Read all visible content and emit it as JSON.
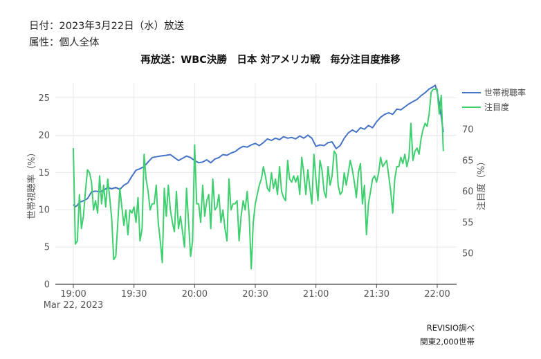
{
  "header": {
    "date_line": "日付：2023年3月22日（水）放送",
    "attribute_line": "属性：個人全体"
  },
  "footer": {
    "source": "REVISIO調べ",
    "sample": "関東2,000世帯"
  },
  "colors": {
    "household_rating": "#4472c4",
    "attention": "#3ecf6f",
    "grid": "#e8e8e8"
  },
  "chart_data": {
    "type": "line",
    "title": "再放送：WBC決勝　日本 対アメリカ戦　毎分注目度推移",
    "x_tick_labels": [
      "19:00",
      "19:30",
      "20:00",
      "20:30",
      "21:00",
      "21:30",
      "22:00"
    ],
    "x_subtitle": "Mar 22, 2023",
    "x_range": [
      "19:00",
      "22:00"
    ],
    "y_left": {
      "label": "世帯視聴率（%）",
      "range": [
        0,
        27
      ],
      "ticks": [
        0,
        5,
        10,
        15,
        20,
        25
      ]
    },
    "y_right": {
      "label": "注目度（%）",
      "range": [
        45,
        77.5
      ],
      "ticks": [
        50,
        55,
        60,
        65,
        70
      ]
    },
    "legend_position": "top-right",
    "grid": true,
    "series": [
      {
        "name": "世帯視聴率",
        "axis": "left",
        "color": "#4472c4",
        "points": [
          [
            "19:00",
            10.7
          ],
          [
            "19:01",
            10.4
          ],
          [
            "19:02",
            10.6
          ],
          [
            "19:03",
            11.0
          ],
          [
            "19:05",
            11.2
          ],
          [
            "19:07",
            11.5
          ],
          [
            "19:09",
            12.4
          ],
          [
            "19:11",
            12.5
          ],
          [
            "19:13",
            12.4
          ],
          [
            "19:15",
            12.6
          ],
          [
            "19:17",
            13.0
          ],
          [
            "19:19",
            12.8
          ],
          [
            "19:21",
            13.0
          ],
          [
            "19:23",
            12.7
          ],
          [
            "19:25",
            13.3
          ],
          [
            "19:27",
            13.6
          ],
          [
            "19:29",
            14.5
          ],
          [
            "19:31",
            15.3
          ],
          [
            "19:33",
            15.5
          ],
          [
            "19:35",
            15.8
          ],
          [
            "19:37",
            16.4
          ],
          [
            "19:39",
            17.0
          ],
          [
            "19:41",
            17.1
          ],
          [
            "19:43",
            17.2
          ],
          [
            "19:46",
            17.3
          ],
          [
            "19:48",
            17.4
          ],
          [
            "19:50",
            17.0
          ],
          [
            "19:52",
            16.6
          ],
          [
            "19:54",
            16.9
          ],
          [
            "19:56",
            17.2
          ],
          [
            "19:58",
            17.0
          ],
          [
            "20:00",
            16.6
          ],
          [
            "20:02",
            16.3
          ],
          [
            "20:04",
            16.4
          ],
          [
            "20:06",
            16.7
          ],
          [
            "20:08",
            16.3
          ],
          [
            "20:10",
            16.8
          ],
          [
            "20:12",
            17.0
          ],
          [
            "20:14",
            17.4
          ],
          [
            "20:16",
            17.3
          ],
          [
            "20:18",
            17.6
          ],
          [
            "20:20",
            17.8
          ],
          [
            "20:22",
            18.2
          ],
          [
            "20:24",
            18.5
          ],
          [
            "20:26",
            18.4
          ],
          [
            "20:28",
            18.7
          ],
          [
            "20:30",
            18.9
          ],
          [
            "20:32",
            18.6
          ],
          [
            "20:34",
            19.0
          ],
          [
            "20:36",
            19.5
          ],
          [
            "20:38",
            19.3
          ],
          [
            "20:40",
            19.6
          ],
          [
            "20:42",
            19.4
          ],
          [
            "20:44",
            19.8
          ],
          [
            "20:46",
            19.6
          ],
          [
            "20:48",
            19.7
          ],
          [
            "20:50",
            19.5
          ],
          [
            "20:52",
            19.9
          ],
          [
            "20:54",
            19.6
          ],
          [
            "20:56",
            20.0
          ],
          [
            "20:58",
            19.6
          ],
          [
            "21:00",
            18.5
          ],
          [
            "21:02",
            18.7
          ],
          [
            "21:04",
            18.6
          ],
          [
            "21:06",
            19.0
          ],
          [
            "21:08",
            19.1
          ],
          [
            "21:10",
            18.2
          ],
          [
            "21:12",
            18.6
          ],
          [
            "21:14",
            19.6
          ],
          [
            "21:16",
            20.3
          ],
          [
            "21:18",
            20.7
          ],
          [
            "21:20",
            20.4
          ],
          [
            "21:22",
            21.0
          ],
          [
            "21:24",
            20.8
          ],
          [
            "21:26",
            21.3
          ],
          [
            "21:28",
            21.0
          ],
          [
            "21:30",
            21.8
          ],
          [
            "21:32",
            22.4
          ],
          [
            "21:34",
            22.8
          ],
          [
            "21:36",
            23.0
          ],
          [
            "21:38",
            22.8
          ],
          [
            "21:40",
            23.5
          ],
          [
            "21:42",
            23.4
          ],
          [
            "21:44",
            23.8
          ],
          [
            "21:46",
            24.2
          ],
          [
            "21:48",
            24.5
          ],
          [
            "21:50",
            24.8
          ],
          [
            "21:52",
            25.3
          ],
          [
            "21:54",
            25.7
          ],
          [
            "21:56",
            26.2
          ],
          [
            "21:58",
            26.5
          ],
          [
            "21:59",
            26.7
          ],
          [
            "22:00",
            25.8
          ],
          [
            "22:01",
            24.3
          ],
          [
            "22:02",
            22.5
          ],
          [
            "22:03",
            20.4
          ]
        ]
      },
      {
        "name": "注目度",
        "axis": "right",
        "color": "#3ecf6f",
        "points": [
          [
            "19:00",
            67.0
          ],
          [
            "19:01",
            51.5
          ],
          [
            "19:02",
            52.0
          ],
          [
            "19:03",
            59.5
          ],
          [
            "19:04",
            54.0
          ],
          [
            "19:05",
            56.0
          ],
          [
            "19:06",
            60.0
          ],
          [
            "19:07",
            63.5
          ],
          [
            "19:08",
            63.0
          ],
          [
            "19:09",
            61.5
          ],
          [
            "19:10",
            57.0
          ],
          [
            "19:11",
            58.5
          ],
          [
            "19:12",
            56.5
          ],
          [
            "19:13",
            62.5
          ],
          [
            "19:14",
            58.0
          ],
          [
            "19:15",
            61.0
          ],
          [
            "19:16",
            57.5
          ],
          [
            "19:17",
            62.0
          ],
          [
            "19:18",
            59.0
          ],
          [
            "19:19",
            55.5
          ],
          [
            "19:20",
            49.0
          ],
          [
            "19:21",
            49.5
          ],
          [
            "19:22",
            55.0
          ],
          [
            "19:23",
            60.5
          ],
          [
            "19:24",
            57.5
          ],
          [
            "19:25",
            54.5
          ],
          [
            "19:26",
            57.0
          ],
          [
            "19:27",
            53.0
          ],
          [
            "19:28",
            57.0
          ],
          [
            "19:29",
            56.5
          ],
          [
            "19:30",
            57.5
          ],
          [
            "19:31",
            55.0
          ],
          [
            "19:32",
            59.0
          ],
          [
            "19:33",
            52.0
          ],
          [
            "19:34",
            54.0
          ],
          [
            "19:35",
            66.0
          ],
          [
            "19:36",
            62.0
          ],
          [
            "19:37",
            60.0
          ],
          [
            "19:38",
            57.0
          ],
          [
            "19:39",
            58.0
          ],
          [
            "19:40",
            58.0
          ],
          [
            "19:41",
            61.0
          ],
          [
            "19:42",
            55.0
          ],
          [
            "19:43",
            52.0
          ],
          [
            "19:44",
            48.5
          ],
          [
            "19:45",
            60.5
          ],
          [
            "19:46",
            56.0
          ],
          [
            "19:47",
            61.0
          ],
          [
            "19:48",
            57.0
          ],
          [
            "19:49",
            55.0
          ],
          [
            "19:50",
            53.5
          ],
          [
            "19:51",
            60.0
          ],
          [
            "19:52",
            54.0
          ],
          [
            "19:53",
            56.0
          ],
          [
            "19:54",
            53.5
          ],
          [
            "19:55",
            51.0
          ],
          [
            "19:56",
            60.5
          ],
          [
            "19:57",
            55.0
          ],
          [
            "19:58",
            49.5
          ],
          [
            "19:59",
            52.0
          ],
          [
            "20:00",
            67.5
          ],
          [
            "20:01",
            58.0
          ],
          [
            "20:02",
            58.0
          ],
          [
            "20:03",
            55.0
          ],
          [
            "20:04",
            61.0
          ],
          [
            "20:05",
            56.0
          ],
          [
            "20:06",
            58.5
          ],
          [
            "20:07",
            59.5
          ],
          [
            "20:08",
            54.0
          ],
          [
            "20:09",
            62.0
          ],
          [
            "20:10",
            57.0
          ],
          [
            "20:11",
            57.5
          ],
          [
            "20:12",
            59.5
          ],
          [
            "20:13",
            55.0
          ],
          [
            "20:14",
            57.0
          ],
          [
            "20:15",
            54.0
          ],
          [
            "20:16",
            52.0
          ],
          [
            "20:17",
            62.0
          ],
          [
            "20:18",
            57.0
          ],
          [
            "20:19",
            58.0
          ],
          [
            "20:20",
            58.0
          ],
          [
            "20:21",
            58.5
          ],
          [
            "20:22",
            52.0
          ],
          [
            "20:23",
            56.0
          ],
          [
            "20:24",
            58.5
          ],
          [
            "20:25",
            57.0
          ],
          [
            "20:26",
            60.0
          ],
          [
            "20:27",
            56.0
          ],
          [
            "20:28",
            47.5
          ],
          [
            "20:29",
            55.0
          ],
          [
            "20:30",
            58.0
          ],
          [
            "20:31",
            59.5
          ],
          [
            "20:32",
            61.0
          ],
          [
            "20:33",
            62.0
          ],
          [
            "20:34",
            64.0
          ],
          [
            "20:35",
            62.5
          ],
          [
            "20:36",
            60.5
          ],
          [
            "20:37",
            60.0
          ],
          [
            "20:38",
            63.0
          ],
          [
            "20:39",
            60.5
          ],
          [
            "20:40",
            62.0
          ],
          [
            "20:41",
            59.5
          ],
          [
            "20:42",
            64.0
          ],
          [
            "20:43",
            60.0
          ],
          [
            "20:44",
            59.0
          ],
          [
            "20:45",
            58.5
          ],
          [
            "20:46",
            65.0
          ],
          [
            "20:47",
            62.0
          ],
          [
            "20:48",
            61.5
          ],
          [
            "20:49",
            62.5
          ],
          [
            "20:50",
            61.5
          ],
          [
            "20:51",
            62.5
          ],
          [
            "20:52",
            59.5
          ],
          [
            "20:53",
            65.5
          ],
          [
            "20:54",
            63.0
          ],
          [
            "20:55",
            59.5
          ],
          [
            "20:56",
            63.5
          ],
          [
            "20:57",
            60.5
          ],
          [
            "20:58",
            58.0
          ],
          [
            "20:59",
            66.0
          ],
          [
            "21:00",
            62.0
          ],
          [
            "21:01",
            58.5
          ],
          [
            "21:02",
            65.0
          ],
          [
            "21:03",
            63.5
          ],
          [
            "21:04",
            60.0
          ],
          [
            "21:05",
            59.0
          ],
          [
            "21:06",
            64.0
          ],
          [
            "21:07",
            61.0
          ],
          [
            "21:08",
            62.5
          ],
          [
            "21:09",
            66.5
          ],
          [
            "21:10",
            66.0
          ],
          [
            "21:11",
            61.0
          ],
          [
            "21:12",
            59.5
          ],
          [
            "21:13",
            60.0
          ],
          [
            "21:14",
            63.0
          ],
          [
            "21:15",
            61.0
          ],
          [
            "21:16",
            63.0
          ],
          [
            "21:17",
            65.0
          ],
          [
            "21:18",
            63.5
          ],
          [
            "21:19",
            61.5
          ],
          [
            "21:20",
            59.0
          ],
          [
            "21:21",
            63.0
          ],
          [
            "21:22",
            64.5
          ],
          [
            "21:23",
            58.0
          ],
          [
            "21:24",
            61.0
          ],
          [
            "21:25",
            53.0
          ],
          [
            "21:26",
            58.0
          ],
          [
            "21:27",
            60.0
          ],
          [
            "21:28",
            62.0
          ],
          [
            "21:29",
            62.5
          ],
          [
            "21:30",
            61.5
          ],
          [
            "21:31",
            63.0
          ],
          [
            "21:32",
            65.5
          ],
          [
            "21:33",
            64.0
          ],
          [
            "21:34",
            64.5
          ],
          [
            "21:35",
            65.0
          ],
          [
            "21:36",
            62.5
          ],
          [
            "21:37",
            60.0
          ],
          [
            "21:38",
            56.5
          ],
          [
            "21:39",
            62.0
          ],
          [
            "21:40",
            64.0
          ],
          [
            "21:41",
            64.0
          ],
          [
            "21:42",
            65.5
          ],
          [
            "21:43",
            64.5
          ],
          [
            "21:44",
            66.0
          ],
          [
            "21:45",
            64.0
          ],
          [
            "21:46",
            65.5
          ],
          [
            "21:47",
            71.0
          ],
          [
            "21:48",
            65.0
          ],
          [
            "21:49",
            66.5
          ],
          [
            "21:50",
            67.0
          ],
          [
            "21:51",
            66.0
          ],
          [
            "21:52",
            68.5
          ],
          [
            "21:53",
            70.0
          ],
          [
            "21:54",
            71.0
          ],
          [
            "21:55",
            70.5
          ],
          [
            "21:56",
            72.5
          ],
          [
            "21:57",
            76.0
          ],
          [
            "21:58",
            76.5
          ],
          [
            "21:59",
            76.5
          ],
          [
            "22:00",
            76.5
          ],
          [
            "22:01",
            72.5
          ],
          [
            "22:02",
            75.5
          ],
          [
            "22:03",
            66.5
          ]
        ]
      }
    ]
  }
}
